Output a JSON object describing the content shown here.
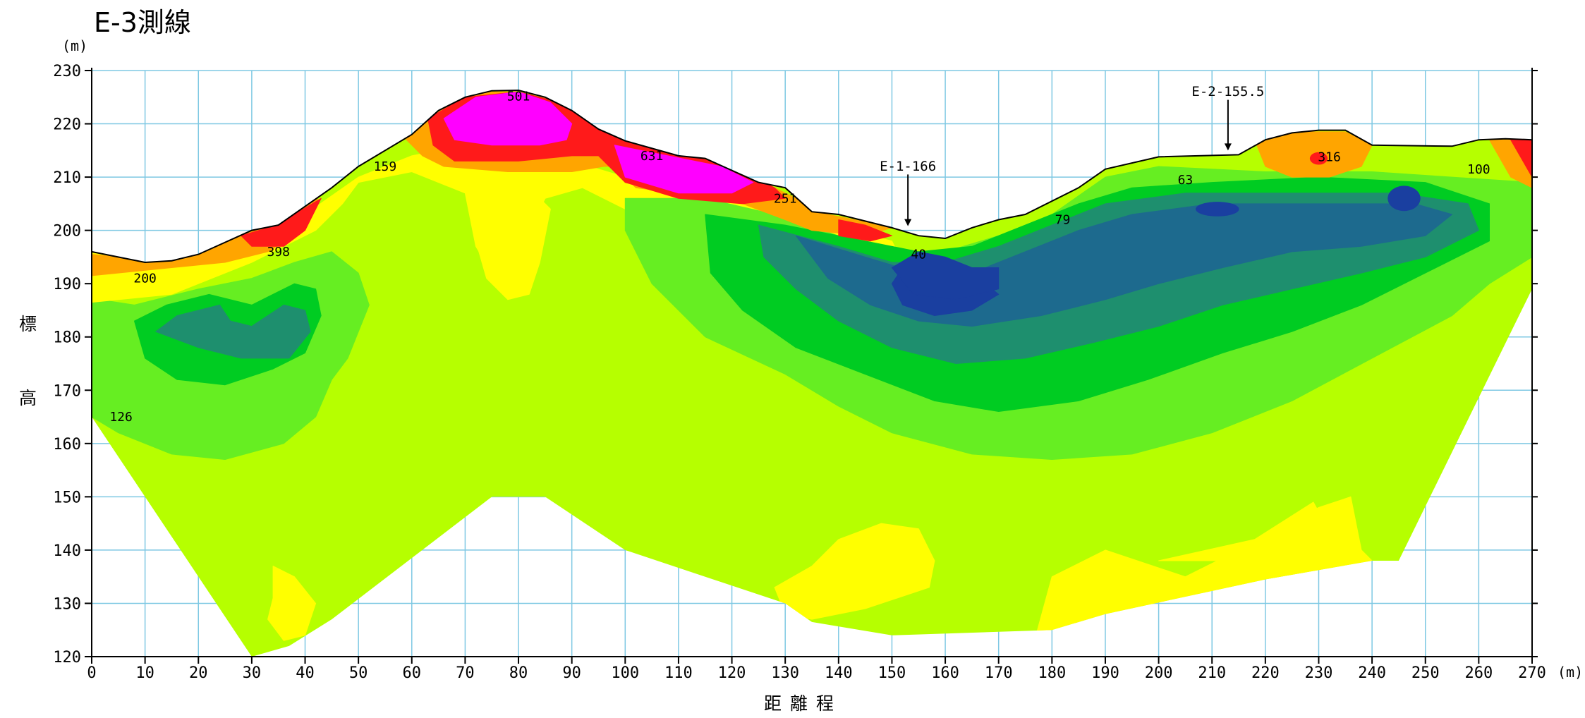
{
  "chart_data": {
    "type": "contour",
    "title": "E-3測線",
    "xlabel": "距 離 程",
    "ylabel_chars": [
      "標",
      "高"
    ],
    "x_unit": "(m)",
    "y_unit": "(m)",
    "xlim": [
      0,
      270
    ],
    "ylim": [
      120,
      230
    ],
    "x_ticks": [
      0,
      10,
      20,
      30,
      40,
      50,
      60,
      70,
      80,
      90,
      100,
      110,
      120,
      130,
      140,
      150,
      160,
      170,
      180,
      190,
      200,
      210,
      220,
      230,
      240,
      250,
      260,
      270
    ],
    "y_ticks": [
      120,
      130,
      140,
      150,
      160,
      170,
      180,
      190,
      200,
      210,
      220,
      230
    ],
    "grid": true,
    "colors": {
      "grid": "#7ec8e3",
      "c_very_low": "#1a3fa0",
      "c_low": "#1d6a8e",
      "c_mid_low": "#1e8f6e",
      "c_green": "#00cc22",
      "c_light_green": "#66ee22",
      "c_yellow_green": "#b6ff00",
      "c_yellow": "#ffff00",
      "c_orange": "#ffa500",
      "c_red": "#ff1a1a",
      "c_magenta": "#ff00ff"
    },
    "surface_profile": [
      [
        0,
        196
      ],
      [
        10,
        194
      ],
      [
        15,
        194.3
      ],
      [
        20,
        195.5
      ],
      [
        30,
        200
      ],
      [
        35,
        201
      ],
      [
        45,
        208
      ],
      [
        50,
        212
      ],
      [
        60,
        218
      ],
      [
        65,
        222.5
      ],
      [
        70,
        225
      ],
      [
        75,
        226.2
      ],
      [
        80,
        226.3
      ],
      [
        85,
        225
      ],
      [
        90,
        222.5
      ],
      [
        95,
        219
      ],
      [
        100,
        216.8
      ],
      [
        110,
        214
      ],
      [
        115,
        213.5
      ],
      [
        125,
        209
      ],
      [
        130,
        208
      ],
      [
        135,
        203.5
      ],
      [
        140,
        203
      ],
      [
        150,
        200.5
      ],
      [
        155,
        199
      ],
      [
        160,
        198.5
      ],
      [
        165,
        200.5
      ],
      [
        170,
        202
      ],
      [
        175,
        203
      ],
      [
        185,
        208
      ],
      [
        190,
        211.5
      ],
      [
        200,
        213.8
      ],
      [
        215,
        214.2
      ],
      [
        220,
        217
      ],
      [
        225,
        218.3
      ],
      [
        230,
        218.8
      ],
      [
        235,
        218.8
      ],
      [
        240,
        216
      ],
      [
        255,
        215.8
      ],
      [
        260,
        217
      ],
      [
        265,
        217.2
      ],
      [
        270,
        217
      ]
    ],
    "bottom_profile": [
      [
        0,
        165
      ],
      [
        30,
        120
      ],
      [
        37,
        122
      ],
      [
        45,
        127
      ],
      [
        75,
        150
      ],
      [
        85,
        150
      ],
      [
        100,
        140
      ],
      [
        130,
        130
      ],
      [
        135,
        126.5
      ],
      [
        150,
        124
      ],
      [
        180,
        125
      ],
      [
        190,
        128
      ],
      [
        220,
        134.5
      ],
      [
        240,
        138
      ],
      [
        245,
        138
      ],
      [
        270,
        189
      ]
    ],
    "value_labels": [
      {
        "x": 80,
        "y": 225.2,
        "text": "501"
      },
      {
        "x": 105,
        "y": 214,
        "text": "631"
      },
      {
        "x": 35,
        "y": 196,
        "text": "398"
      },
      {
        "x": 10,
        "y": 191,
        "text": "200"
      },
      {
        "x": 55,
        "y": 212,
        "text": "159"
      },
      {
        "x": 5.5,
        "y": 165,
        "text": "126"
      },
      {
        "x": 130,
        "y": 206,
        "text": "251"
      },
      {
        "x": 155,
        "y": 195.5,
        "text": "40"
      },
      {
        "x": 182,
        "y": 202,
        "text": "79"
      },
      {
        "x": 205,
        "y": 209.5,
        "text": "63"
      },
      {
        "x": 232,
        "y": 213.8,
        "text": "316"
      },
      {
        "x": 260,
        "y": 211.5,
        "text": "100"
      }
    ],
    "markers": [
      {
        "x": 153,
        "label": "E-1-166",
        "label_y": 212,
        "arrow_top": 210.5,
        "arrow_tip": 200.8
      },
      {
        "x": 213,
        "label": "E-2-155.5",
        "label_y": 226,
        "arrow_top": 224.5,
        "arrow_tip": 215
      }
    ]
  }
}
